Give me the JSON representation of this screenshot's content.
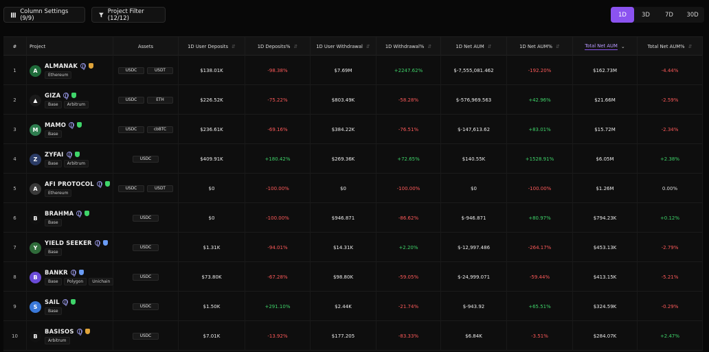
{
  "toolbar": {
    "column_settings": "Column Settings (9/9)",
    "project_filter": "Project Filter (12/12)"
  },
  "range": {
    "options": [
      "1D",
      "3D",
      "7D",
      "30D"
    ],
    "selected": "1D"
  },
  "colors": {
    "accent": "#8b53f0",
    "positive": "#3fd46a",
    "negative": "#ff5a5a"
  },
  "columns": [
    "#",
    "Project",
    "Assets",
    "1D User Deposits",
    "1D Deposits%",
    "1D User Withdrawal",
    "1D Withdrawal%",
    "1D Net AUM",
    "1D Net AUM%",
    "Total Net AUM",
    "Total Net AUM%"
  ],
  "sorted_column": "Total Net AUM",
  "rows": [
    {
      "idx": "1",
      "name": "ALMANAK",
      "logo": "almanak-logo",
      "logo_color": "#1f6b3a",
      "logo_char": "A",
      "shield": "#e0a43a",
      "chains": [
        "Ethereum"
      ],
      "assets": [
        "USDC",
        "USDT"
      ],
      "dep": "$138.01K",
      "dep_pct": "-98.38%",
      "wd": "$7.69M",
      "wd_pct": "+2247.62%",
      "aum": "$-7,555,081.462",
      "aum_pct": "-192.20%",
      "tot": "$162.73M",
      "tot_pct": "-4.44%"
    },
    {
      "idx": "2",
      "name": "GIZA",
      "logo": "giza-logo",
      "logo_color": "#1a1a1a",
      "logo_char": "▲",
      "shield": "#3fd46a",
      "chains": [
        "Base",
        "Arbitrum"
      ],
      "assets": [
        "USDC",
        "ETH"
      ],
      "dep": "$226.52K",
      "dep_pct": "-75.22%",
      "wd": "$803.49K",
      "wd_pct": "-58.28%",
      "aum": "$-576,969.563",
      "aum_pct": "+42.96%",
      "tot": "$21.66M",
      "tot_pct": "-2.59%"
    },
    {
      "idx": "3",
      "name": "MAMO",
      "logo": "mamo-logo",
      "logo_color": "#2e7d4f",
      "logo_char": "M",
      "shield": "#3fd46a",
      "chains": [
        "Base"
      ],
      "assets": [
        "USDC",
        "cbBTC"
      ],
      "dep": "$236.61K",
      "dep_pct": "-69.16%",
      "wd": "$384.22K",
      "wd_pct": "-76.51%",
      "aum": "$-147,613.62",
      "aum_pct": "+83.01%",
      "tot": "$15.72M",
      "tot_pct": "-2.34%"
    },
    {
      "idx": "4",
      "name": "ZYFAI",
      "logo": "zyfai-logo",
      "logo_color": "#2b3c66",
      "logo_char": "Z",
      "shield": "#3fd46a",
      "chains": [
        "Base",
        "Arbitrum"
      ],
      "assets": [
        "USDC"
      ],
      "dep": "$409.91K",
      "dep_pct": "+180.42%",
      "wd": "$269.36K",
      "wd_pct": "+72.65%",
      "aum": "$140.55K",
      "aum_pct": "+1528.91%",
      "tot": "$6.05M",
      "tot_pct": "+2.38%"
    },
    {
      "idx": "5",
      "name": "AFI PROTOCOL",
      "logo": "afi-protocol-logo",
      "logo_color": "#3a3a3a",
      "logo_char": "A",
      "shield": "#3fd46a",
      "chains": [
        "Ethereum"
      ],
      "assets": [
        "USDC",
        "USDT"
      ],
      "dep": "$0",
      "dep_pct": "-100.00%",
      "wd": "$0",
      "wd_pct": "-100.00%",
      "aum": "$0",
      "aum_pct": "-100.00%",
      "tot": "$1.26M",
      "tot_pct": "0.00%"
    },
    {
      "idx": "6",
      "name": "BRAHMA",
      "logo": "brahma-logo",
      "logo_color": "#111111",
      "logo_char": "B",
      "shield": "#3fd46a",
      "chains": [
        "Base"
      ],
      "assets": [
        "USDC"
      ],
      "dep": "$0",
      "dep_pct": "-100.00%",
      "wd": "$946.871",
      "wd_pct": "-86.62%",
      "aum": "$-946.871",
      "aum_pct": "+80.97%",
      "tot": "$794.23K",
      "tot_pct": "+0.12%"
    },
    {
      "idx": "7",
      "name": "YIELD SEEKER",
      "logo": "yield-seeker-logo",
      "logo_color": "#2f6b3a",
      "logo_char": "Y",
      "shield": "#6a9cf5",
      "chains": [
        "Base"
      ],
      "assets": [
        "USDC"
      ],
      "dep": "$1.31K",
      "dep_pct": "-94.01%",
      "wd": "$14.31K",
      "wd_pct": "+2.20%",
      "aum": "$-12,997.486",
      "aum_pct": "-264.17%",
      "tot": "$453.13K",
      "tot_pct": "-2.79%"
    },
    {
      "idx": "8",
      "name": "BANKR",
      "logo": "bankr-logo",
      "logo_color": "#6a4bd8",
      "logo_char": "B",
      "shield": "#6a9cf5",
      "chains": [
        "Base",
        "Polygon",
        "Unichain"
      ],
      "assets": [
        "USDC"
      ],
      "dep": "$73.80K",
      "dep_pct": "-67.28%",
      "wd": "$98.80K",
      "wd_pct": "-59.05%",
      "aum": "$-24,999.071",
      "aum_pct": "-59.44%",
      "tot": "$413.15K",
      "tot_pct": "-5.21%"
    },
    {
      "idx": "9",
      "name": "SAIL",
      "logo": "sail-logo",
      "logo_color": "#3a78d8",
      "logo_char": "S",
      "shield": "#3fd46a",
      "chains": [
        "Base"
      ],
      "assets": [
        "USDC"
      ],
      "dep": "$1.50K",
      "dep_pct": "+291.10%",
      "wd": "$2.44K",
      "wd_pct": "-21.74%",
      "aum": "$-943.92",
      "aum_pct": "+65.51%",
      "tot": "$324.59K",
      "tot_pct": "-0.29%"
    },
    {
      "idx": "10",
      "name": "BASISOS",
      "logo": "basisos-logo",
      "logo_color": "#111111",
      "logo_char": "B",
      "shield": "#e0a43a",
      "chains": [
        "Arbitrum"
      ],
      "assets": [
        "USDC"
      ],
      "dep": "$7.01K",
      "dep_pct": "-13.92%",
      "wd": "$177.205",
      "wd_pct": "-83.33%",
      "aum": "$6.84K",
      "aum_pct": "-3.51%",
      "tot": "$284.07K",
      "tot_pct": "+2.47%"
    }
  ]
}
